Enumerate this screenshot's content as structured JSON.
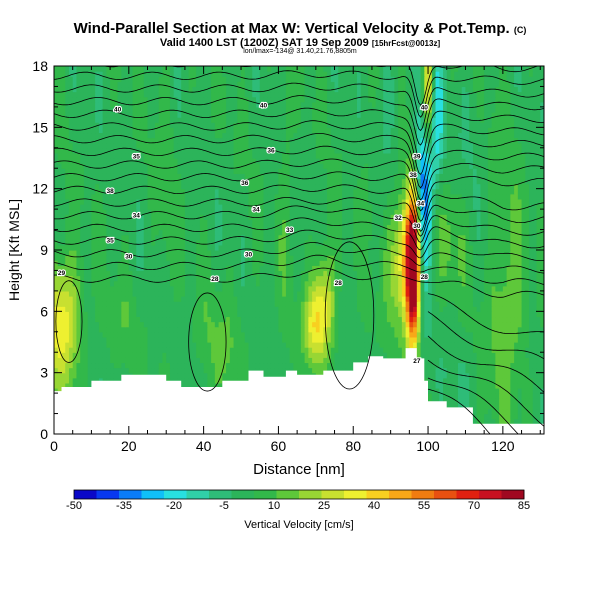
{
  "header": {
    "title": "Wind-Parallel Section at Max W: Vertical Velocity & Pot.Temp.",
    "title_mark": "(C)",
    "valid_line": "Valid 1400 LST (1200Z) SAT 19 Sep 2009",
    "valid_suffix": "[15hrFcst@0013z]",
    "info_line": "lon/lmax=-134@ 31.40,21.76,8805m"
  },
  "chart_data": {
    "type": "heatmap",
    "xlabel": "Distance [nm]",
    "ylabel": "Height [Kft MSL]",
    "xlim": [
      0,
      131
    ],
    "ylim": [
      0,
      18
    ],
    "xticks": [
      0,
      20,
      40,
      60,
      80,
      100,
      120
    ],
    "yticks": [
      0,
      3,
      6,
      9,
      12,
      15,
      18
    ],
    "colorbar": {
      "label": "Vertical Velocity [cm/s]",
      "ticks": [
        -50,
        -35,
        -20,
        -5,
        10,
        25,
        40,
        55,
        70,
        85
      ],
      "colors": [
        "#0a08c8",
        "#0838f0",
        "#0a7cf8",
        "#10c0f8",
        "#28e0e0",
        "#30d0a8",
        "#2ebc78",
        "#2cb45a",
        "#32b84a",
        "#5ec83a",
        "#98d634",
        "#c8e030",
        "#eef030",
        "#f8d020",
        "#f8a818",
        "#f07c10",
        "#e85010",
        "#e02010",
        "#c81020",
        "#a00820"
      ]
    },
    "terrain": [
      [
        0,
        2.1
      ],
      [
        2,
        2.1
      ],
      [
        2,
        2.3
      ],
      [
        10,
        2.3
      ],
      [
        10,
        2.6
      ],
      [
        18,
        2.6
      ],
      [
        18,
        2.9
      ],
      [
        30,
        2.9
      ],
      [
        30,
        2.6
      ],
      [
        34,
        2.6
      ],
      [
        34,
        2.3
      ],
      [
        45,
        2.3
      ],
      [
        45,
        2.6
      ],
      [
        52,
        2.6
      ],
      [
        52,
        3.1
      ],
      [
        56,
        3.1
      ],
      [
        56,
        2.8
      ],
      [
        62,
        2.8
      ],
      [
        62,
        3.1
      ],
      [
        65,
        3.1
      ],
      [
        65,
        2.9
      ],
      [
        72,
        2.9
      ],
      [
        72,
        3.1
      ],
      [
        80,
        3.1
      ],
      [
        80,
        3.5
      ],
      [
        84,
        3.5
      ],
      [
        84,
        3.8
      ],
      [
        88,
        3.8
      ],
      [
        88,
        3.7
      ],
      [
        94,
        3.7
      ],
      [
        94,
        4.2
      ],
      [
        97,
        4.2
      ],
      [
        97,
        3.7
      ],
      [
        99,
        3.7
      ],
      [
        99,
        2.6
      ],
      [
        100,
        2.6
      ],
      [
        100,
        1.6
      ],
      [
        105,
        1.6
      ],
      [
        105,
        1.3
      ],
      [
        112,
        1.3
      ],
      [
        112,
        0.5
      ],
      [
        131,
        0.5
      ]
    ],
    "theta_labels": [
      {
        "x": 17,
        "y": 15.9,
        "text": "40"
      },
      {
        "x": 56,
        "y": 16.1,
        "text": "40"
      },
      {
        "x": 99,
        "y": 16.0,
        "text": "40"
      },
      {
        "x": 22,
        "y": 13.6,
        "text": "35"
      },
      {
        "x": 58,
        "y": 13.9,
        "text": "36"
      },
      {
        "x": 97,
        "y": 13.6,
        "text": "39"
      },
      {
        "x": 15,
        "y": 11.9,
        "text": "38"
      },
      {
        "x": 51,
        "y": 12.3,
        "text": "36"
      },
      {
        "x": 96,
        "y": 12.7,
        "text": "38"
      },
      {
        "x": 22,
        "y": 10.7,
        "text": "34"
      },
      {
        "x": 54,
        "y": 11.0,
        "text": "34"
      },
      {
        "x": 98,
        "y": 11.3,
        "text": "34"
      },
      {
        "x": 92,
        "y": 10.6,
        "text": "32"
      },
      {
        "x": 15,
        "y": 9.5,
        "text": "35"
      },
      {
        "x": 63,
        "y": 10.0,
        "text": "33"
      },
      {
        "x": 97,
        "y": 10.2,
        "text": "30"
      },
      {
        "x": 20,
        "y": 8.7,
        "text": "30"
      },
      {
        "x": 52,
        "y": 8.8,
        "text": "30"
      },
      {
        "x": 2,
        "y": 7.9,
        "text": "29"
      },
      {
        "x": 43,
        "y": 7.6,
        "text": "28"
      },
      {
        "x": 76,
        "y": 7.4,
        "text": "28"
      },
      {
        "x": 99,
        "y": 7.7,
        "text": "28"
      },
      {
        "x": 97,
        "y": 3.6,
        "text": "27"
      }
    ],
    "velocity_features": [
      {
        "x": 96,
        "y": 8.0,
        "sx": 1.2,
        "sy": 2.6,
        "w": 85
      },
      {
        "x": 94,
        "y": 8.5,
        "sx": 2.8,
        "sy": 2.2,
        "w": 40
      },
      {
        "x": 100,
        "y": 16.5,
        "sx": 1.2,
        "sy": 2.2,
        "w": 55
      },
      {
        "x": 99,
        "y": 12.5,
        "sx": 1.5,
        "sy": 3.5,
        "w": -45
      },
      {
        "x": 102,
        "y": 15.5,
        "sx": 1.5,
        "sy": 2.5,
        "w": -25
      },
      {
        "x": 90,
        "y": 16.5,
        "sx": 1.2,
        "sy": 2.0,
        "w": -8
      },
      {
        "x": 2,
        "y": 5.5,
        "sx": 3.5,
        "sy": 2.2,
        "w": 35
      },
      {
        "x": 72,
        "y": 6.3,
        "sx": 2.2,
        "sy": 1.8,
        "w": 32
      },
      {
        "x": 69,
        "y": 5.2,
        "sx": 2.0,
        "sy": 1.2,
        "w": 20
      },
      {
        "x": 110,
        "y": 3.2,
        "sx": 4.0,
        "sy": 1.8,
        "w": -4
      },
      {
        "x": 120,
        "y": 3.0,
        "sx": 5.0,
        "sy": 2.5,
        "w": 6
      },
      {
        "x": 45,
        "y": 4.5,
        "sx": 5.0,
        "sy": 2.0,
        "w": 8
      },
      {
        "x": 30,
        "y": 11.5,
        "sx": 1.5,
        "sy": 6.0,
        "w": 6
      },
      {
        "x": 62,
        "y": 12.5,
        "sx": 1.5,
        "sy": 5.5,
        "w": 6
      },
      {
        "x": 84,
        "y": 12.0,
        "sx": 1.5,
        "sy": 5.0,
        "w": 6
      },
      {
        "x": 120,
        "y": 11.0,
        "sx": 4.0,
        "sy": 4.0,
        "w": 6
      },
      {
        "x": 112,
        "y": 15.0,
        "sx": 3.0,
        "sy": 3.0,
        "w": -4
      },
      {
        "x": 86,
        "y": 15.5,
        "sx": 2.5,
        "sy": 3.0,
        "w": -3
      },
      {
        "x": 106,
        "y": 9.5,
        "sx": 3.0,
        "sy": 2.0,
        "w": 10
      },
      {
        "x": 122,
        "y": 6.5,
        "sx": 3.0,
        "sy": 2.0,
        "w": 12
      },
      {
        "x": 18,
        "y": 5.5,
        "sx": 4.0,
        "sy": 1.5,
        "w": 5
      },
      {
        "x": 84,
        "y": 8.5,
        "sx": 2.0,
        "sy": 1.5,
        "w": -3
      }
    ]
  }
}
